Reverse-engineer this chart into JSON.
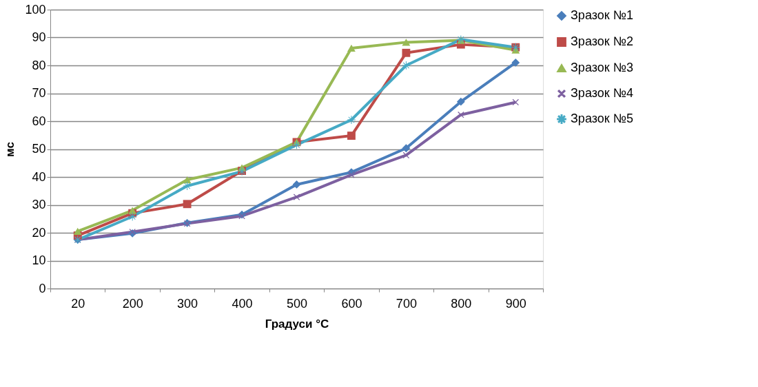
{
  "chart_data": {
    "type": "line",
    "xlabel": "Градуси °C",
    "ylabel": "мс",
    "categories": [
      "20",
      "200",
      "300",
      "400",
      "500",
      "600",
      "700",
      "800",
      "900"
    ],
    "series": [
      {
        "name": "Зразок №1",
        "color": "#4a7ebb",
        "marker": "diamond",
        "values": [
          17.5,
          19.8,
          23.5,
          26.5,
          37.3,
          41.7,
          50.3,
          67,
          81
        ]
      },
      {
        "name": "Зразок №2",
        "color": "#be4b48",
        "marker": "square",
        "values": [
          19,
          27,
          30.3,
          42.2,
          52.5,
          54.8,
          84.5,
          87.5,
          86.5
        ]
      },
      {
        "name": "Зразок №3",
        "color": "#98b954",
        "marker": "triangle",
        "values": [
          20.5,
          28,
          39,
          43.3,
          52.5,
          86.2,
          88.3,
          89,
          85.5
        ]
      },
      {
        "name": "Зразок №4",
        "color": "#7d60a0",
        "marker": "cross",
        "values": [
          17.5,
          20.3,
          23.3,
          26,
          32.8,
          40.8,
          47.8,
          62.3,
          66.8
        ]
      },
      {
        "name": "Зразок №5",
        "color": "#46aac5",
        "marker": "star",
        "values": [
          17.5,
          25.8,
          36.8,
          42,
          51.5,
          60.5,
          80,
          89.3,
          86.5
        ]
      }
    ],
    "ylim": [
      0,
      100
    ],
    "yticks": [
      0,
      10,
      20,
      30,
      40,
      50,
      60,
      70,
      80,
      90,
      100
    ],
    "grid": "y",
    "legend": "right",
    "line_style": "solid"
  }
}
